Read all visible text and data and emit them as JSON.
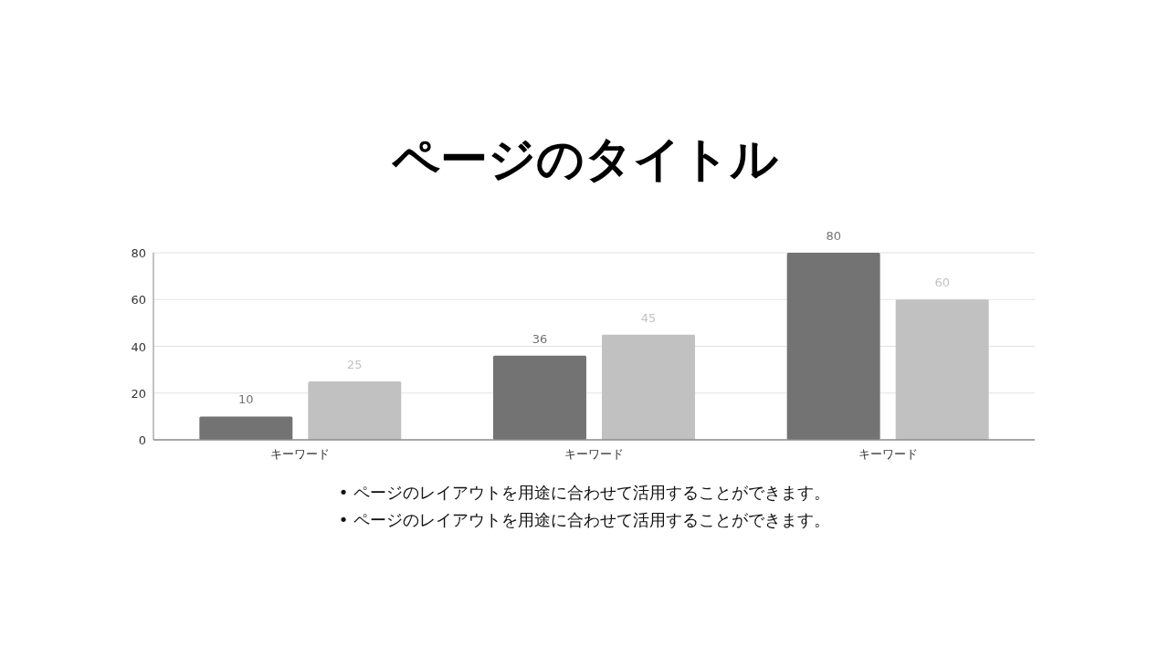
{
  "chart_data": {
    "type": "bar",
    "title": "ページのタイトル",
    "categories": [
      "キーワード",
      "キーワード",
      "キーワード"
    ],
    "series": [
      {
        "color": "#737373",
        "values": [
          10,
          36,
          80
        ]
      },
      {
        "color": "#c1c1c1",
        "values": [
          25,
          45,
          60
        ]
      }
    ],
    "ylim": [
      0,
      80
    ],
    "yticks": [
      0,
      20,
      40,
      60,
      80
    ],
    "grid": "y",
    "data_labels": true,
    "annotations": [
      "• ページのレイアウトを用途に合わせて活用することができます。",
      "• ページのレイアウトを用途に合わせて活用することができます。"
    ]
  }
}
